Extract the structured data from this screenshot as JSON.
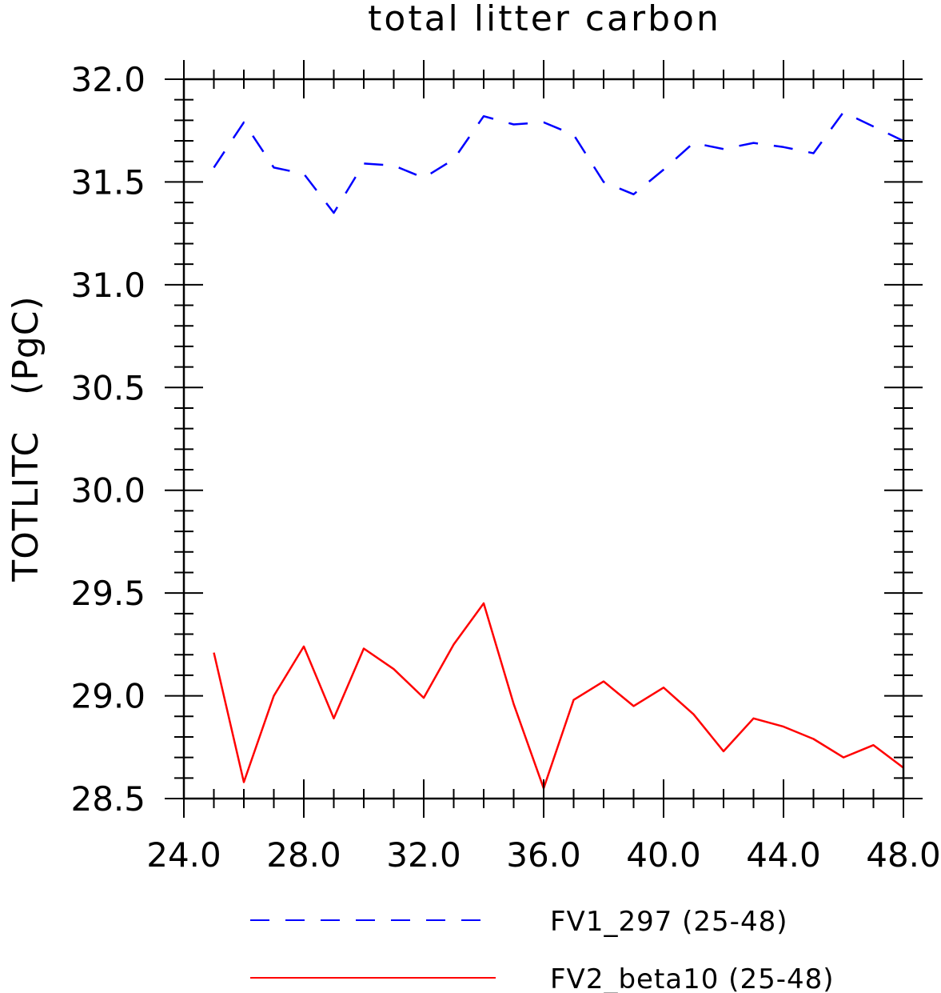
{
  "chart_data": {
    "type": "line",
    "title": "total litter carbon",
    "ylabel": "TOTLITC   (PgC)",
    "xlabel": "",
    "xlim": [
      24,
      48
    ],
    "ylim": [
      28.5,
      32.0
    ],
    "x_ticks": [
      24,
      28,
      32,
      36,
      40,
      44,
      48
    ],
    "x_tick_labels": [
      "24.0",
      "28.0",
      "32.0",
      "36.0",
      "40.0",
      "44.0",
      "48.0"
    ],
    "y_ticks": [
      28.5,
      29.0,
      29.5,
      30.0,
      30.5,
      31.0,
      31.5,
      32.0
    ],
    "y_tick_labels": [
      "28.5",
      "29.0",
      "29.5",
      "30.0",
      "30.5",
      "31.0",
      "31.5",
      "32.0"
    ],
    "grid": false,
    "legend_position": "bottom",
    "x": [
      25,
      26,
      27,
      28,
      29,
      30,
      31,
      32,
      33,
      34,
      35,
      36,
      37,
      38,
      39,
      40,
      41,
      42,
      43,
      44,
      45,
      46,
      47,
      48
    ],
    "series": [
      {
        "name": "FV1_297 (25-48)",
        "color": "#0000ff",
        "style": "dashed",
        "values": [
          31.57,
          31.79,
          31.57,
          31.54,
          31.35,
          31.59,
          31.58,
          31.52,
          31.61,
          31.82,
          31.78,
          31.79,
          31.73,
          31.5,
          31.44,
          31.56,
          31.69,
          31.66,
          31.69,
          31.67,
          31.64,
          31.84,
          31.77,
          31.7
        ]
      },
      {
        "name": "FV2_beta10 (25-48)",
        "color": "#ff0000",
        "style": "solid",
        "values": [
          29.21,
          28.58,
          29.0,
          29.24,
          28.89,
          29.23,
          29.13,
          28.99,
          29.25,
          29.45,
          28.96,
          28.55,
          28.98,
          29.07,
          28.95,
          29.04,
          28.91,
          28.73,
          28.89,
          28.85,
          28.79,
          28.7,
          28.76,
          28.65
        ]
      }
    ]
  }
}
